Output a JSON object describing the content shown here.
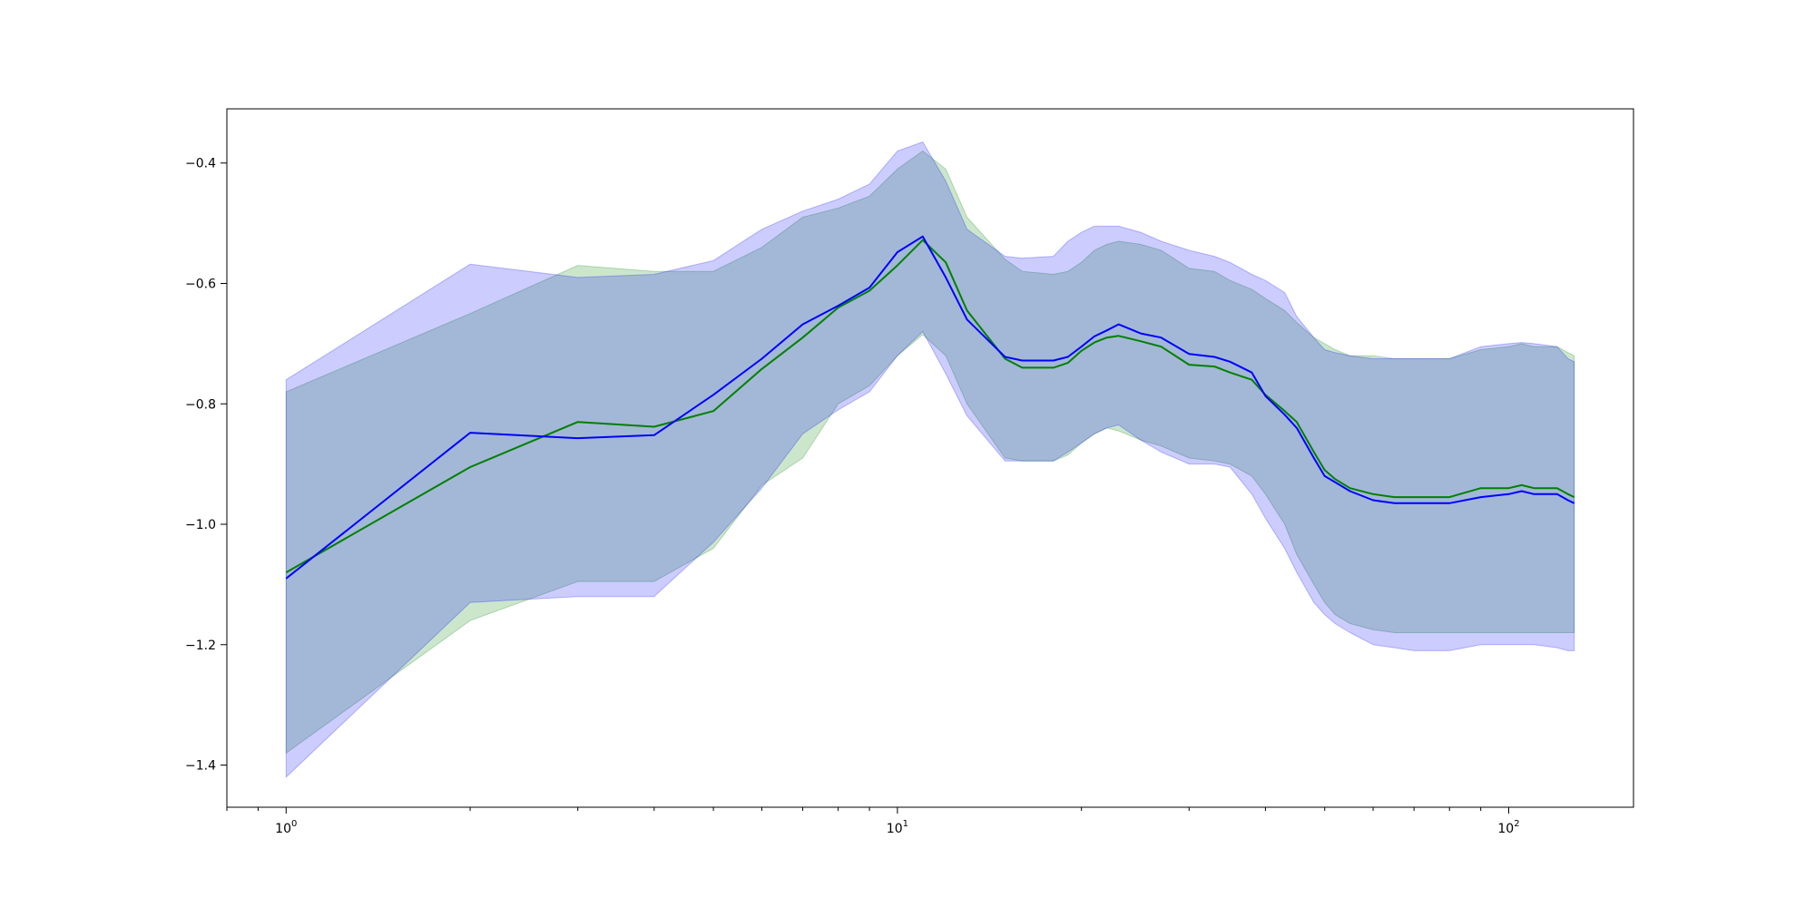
{
  "chart_data": {
    "type": "line",
    "xscale": "log",
    "xlim": [
      0.8,
      160
    ],
    "ylim": [
      -1.47,
      -0.31
    ],
    "grid": false,
    "x_ticks": [
      {
        "value": 1,
        "base": "10",
        "exp": "0"
      },
      {
        "value": 10,
        "base": "10",
        "exp": "1"
      },
      {
        "value": 100,
        "base": "10",
        "exp": "2"
      }
    ],
    "y_ticks": [
      {
        "value": -0.4,
        "label": "−0.4"
      },
      {
        "value": -0.6,
        "label": "−0.6"
      },
      {
        "value": -0.8,
        "label": "−0.8"
      },
      {
        "value": -1.0,
        "label": "−1.0"
      },
      {
        "value": -1.2,
        "label": "−1.2"
      },
      {
        "value": -1.4,
        "label": "−1.4"
      }
    ],
    "series": [
      {
        "line_color": "#008000",
        "band_color": "#008000",
        "band_opacity": 0.2,
        "x": [
          1,
          2,
          3,
          4,
          5,
          6,
          7,
          8,
          9,
          10,
          11,
          12,
          13,
          15,
          16,
          18,
          19,
          20,
          21,
          22,
          23,
          25,
          27,
          30,
          33,
          35,
          38,
          40,
          43,
          45,
          48,
          50,
          52,
          55,
          60,
          65,
          70,
          80,
          90,
          100,
          105,
          110,
          120,
          125,
          128
        ],
        "mean": [
          -1.08,
          -0.905,
          -0.83,
          -0.838,
          -0.812,
          -0.742,
          -0.69,
          -0.64,
          -0.612,
          -0.57,
          -0.528,
          -0.565,
          -0.645,
          -0.725,
          -0.74,
          -0.74,
          -0.732,
          -0.712,
          -0.698,
          -0.69,
          -0.687,
          -0.696,
          -0.705,
          -0.735,
          -0.738,
          -0.748,
          -0.76,
          -0.785,
          -0.812,
          -0.83,
          -0.88,
          -0.91,
          -0.925,
          -0.94,
          -0.95,
          -0.955,
          -0.955,
          -0.955,
          -0.94,
          -0.94,
          -0.935,
          -0.94,
          -0.94,
          -0.95,
          -0.955
        ],
        "upper": [
          -0.78,
          -0.65,
          -0.57,
          -0.58,
          -0.58,
          -0.54,
          -0.49,
          -0.475,
          -0.455,
          -0.41,
          -0.38,
          -0.41,
          -0.49,
          -0.56,
          -0.58,
          -0.585,
          -0.58,
          -0.565,
          -0.545,
          -0.535,
          -0.53,
          -0.535,
          -0.545,
          -0.575,
          -0.58,
          -0.595,
          -0.61,
          -0.625,
          -0.645,
          -0.665,
          -0.69,
          -0.7,
          -0.71,
          -0.72,
          -0.72,
          -0.725,
          -0.725,
          -0.725,
          -0.71,
          -0.705,
          -0.7,
          -0.705,
          -0.705,
          -0.715,
          -0.72
        ],
        "lower": [
          -1.38,
          -1.16,
          -1.095,
          -1.095,
          -1.04,
          -0.935,
          -0.89,
          -0.8,
          -0.77,
          -0.72,
          -0.685,
          -0.72,
          -0.8,
          -0.89,
          -0.895,
          -0.895,
          -0.885,
          -0.865,
          -0.85,
          -0.84,
          -0.845,
          -0.86,
          -0.87,
          -0.89,
          -0.895,
          -0.9,
          -0.92,
          -0.95,
          -1.0,
          -1.05,
          -1.1,
          -1.13,
          -1.15,
          -1.165,
          -1.175,
          -1.18,
          -1.18,
          -1.18,
          -1.18,
          -1.18,
          -1.18,
          -1.18,
          -1.18,
          -1.18,
          -1.18
        ]
      },
      {
        "line_color": "#0000ff",
        "band_color": "#0000ff",
        "band_opacity": 0.2,
        "x": [
          1,
          2,
          3,
          4,
          5,
          6,
          7,
          8,
          9,
          10,
          11,
          12,
          13,
          15,
          16,
          18,
          19,
          20,
          21,
          22,
          23,
          25,
          27,
          30,
          33,
          35,
          38,
          40,
          43,
          45,
          48,
          50,
          52,
          55,
          60,
          65,
          70,
          80,
          90,
          100,
          105,
          110,
          120,
          125,
          128
        ],
        "mean": [
          -1.09,
          -0.848,
          -0.857,
          -0.852,
          -0.785,
          -0.725,
          -0.668,
          -0.637,
          -0.607,
          -0.548,
          -0.522,
          -0.59,
          -0.66,
          -0.722,
          -0.728,
          -0.728,
          -0.722,
          -0.705,
          -0.688,
          -0.678,
          -0.668,
          -0.683,
          -0.69,
          -0.717,
          -0.722,
          -0.73,
          -0.748,
          -0.787,
          -0.818,
          -0.84,
          -0.89,
          -0.92,
          -0.93,
          -0.945,
          -0.96,
          -0.965,
          -0.965,
          -0.965,
          -0.955,
          -0.95,
          -0.945,
          -0.95,
          -0.95,
          -0.96,
          -0.965
        ],
        "upper": [
          -0.76,
          -0.568,
          -0.59,
          -0.585,
          -0.562,
          -0.51,
          -0.48,
          -0.46,
          -0.435,
          -0.38,
          -0.365,
          -0.43,
          -0.51,
          -0.555,
          -0.558,
          -0.555,
          -0.53,
          -0.515,
          -0.505,
          -0.505,
          -0.505,
          -0.515,
          -0.53,
          -0.545,
          -0.555,
          -0.565,
          -0.585,
          -0.595,
          -0.615,
          -0.655,
          -0.69,
          -0.71,
          -0.715,
          -0.72,
          -0.725,
          -0.725,
          -0.725,
          -0.725,
          -0.705,
          -0.7,
          -0.698,
          -0.7,
          -0.705,
          -0.725,
          -0.73
        ],
        "lower": [
          -1.42,
          -1.13,
          -1.12,
          -1.12,
          -1.03,
          -0.94,
          -0.85,
          -0.81,
          -0.78,
          -0.72,
          -0.68,
          -0.75,
          -0.82,
          -0.895,
          -0.895,
          -0.895,
          -0.88,
          -0.865,
          -0.85,
          -0.84,
          -0.835,
          -0.86,
          -0.88,
          -0.9,
          -0.9,
          -0.905,
          -0.95,
          -0.99,
          -1.04,
          -1.08,
          -1.13,
          -1.15,
          -1.165,
          -1.18,
          -1.2,
          -1.205,
          -1.21,
          -1.21,
          -1.2,
          -1.2,
          -1.2,
          -1.2,
          -1.205,
          -1.21,
          -1.21
        ]
      }
    ]
  }
}
